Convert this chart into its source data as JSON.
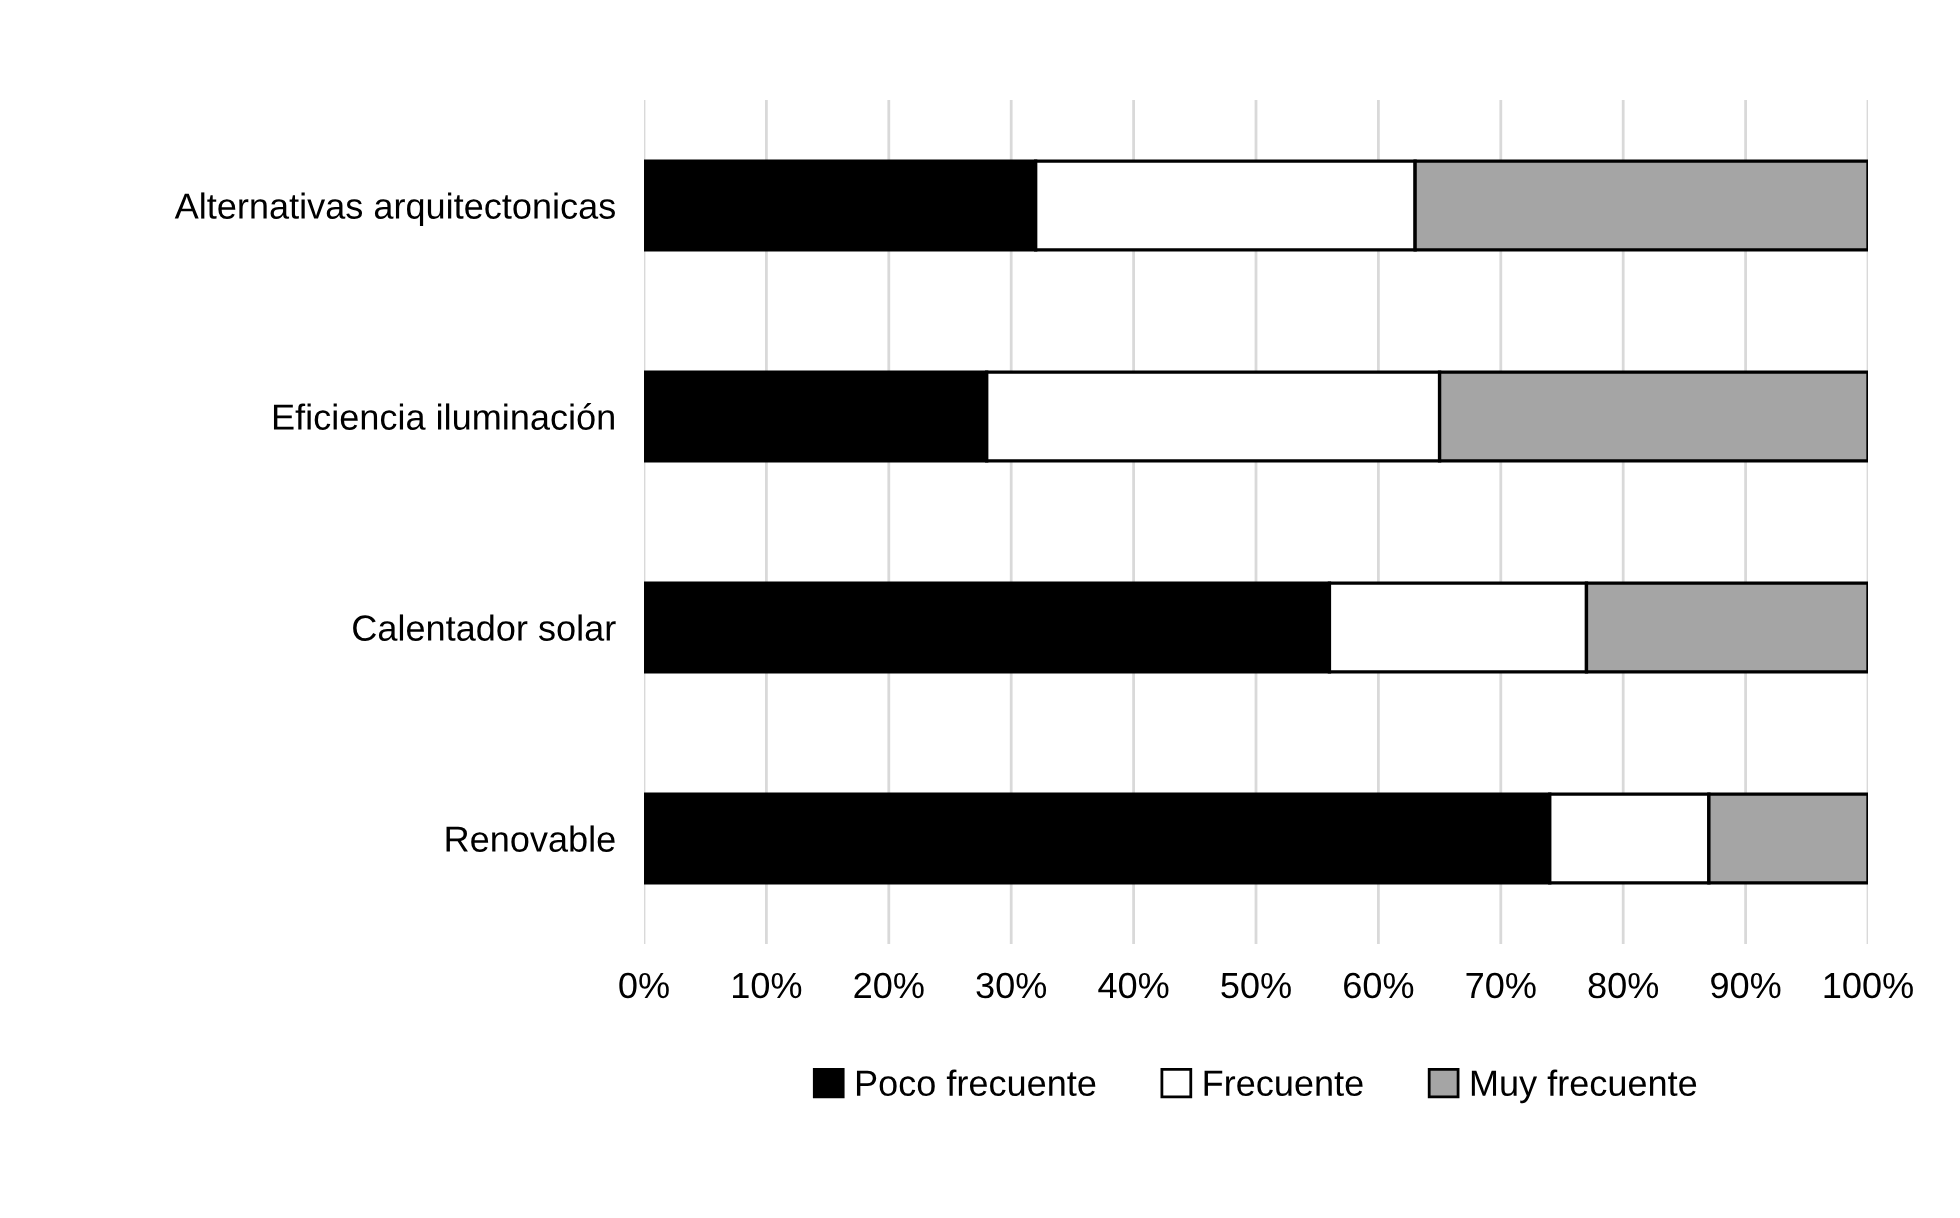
{
  "chart_data": {
    "type": "bar",
    "orientation": "horizontal",
    "stacked": true,
    "categories": [
      "Alternativas arquitectonicas",
      "Eficiencia iluminación",
      "Calentador solar",
      "Renovable"
    ],
    "series": [
      {
        "name": "Poco frecuente",
        "color": "#000000",
        "values": [
          32,
          28,
          56,
          74
        ]
      },
      {
        "name": "Frecuente",
        "color": "#ffffff",
        "values": [
          31,
          37,
          21,
          13
        ]
      },
      {
        "name": "Muy frecuente",
        "color": "#a5a5a5",
        "values": [
          37,
          35,
          23,
          13
        ]
      }
    ],
    "xlim": [
      0,
      100
    ],
    "xticks": [
      {
        "value": 0,
        "label": "0%"
      },
      {
        "value": 10,
        "label": "10%"
      },
      {
        "value": 20,
        "label": "20%"
      },
      {
        "value": 30,
        "label": "30%"
      },
      {
        "value": 40,
        "label": "40%"
      },
      {
        "value": 50,
        "label": "50%"
      },
      {
        "value": 60,
        "label": "60%"
      },
      {
        "value": 70,
        "label": "70%"
      },
      {
        "value": 80,
        "label": "80%"
      },
      {
        "value": 90,
        "label": "90%"
      },
      {
        "value": 100,
        "label": "100%"
      }
    ],
    "grid": "x",
    "legend": "bottom"
  }
}
